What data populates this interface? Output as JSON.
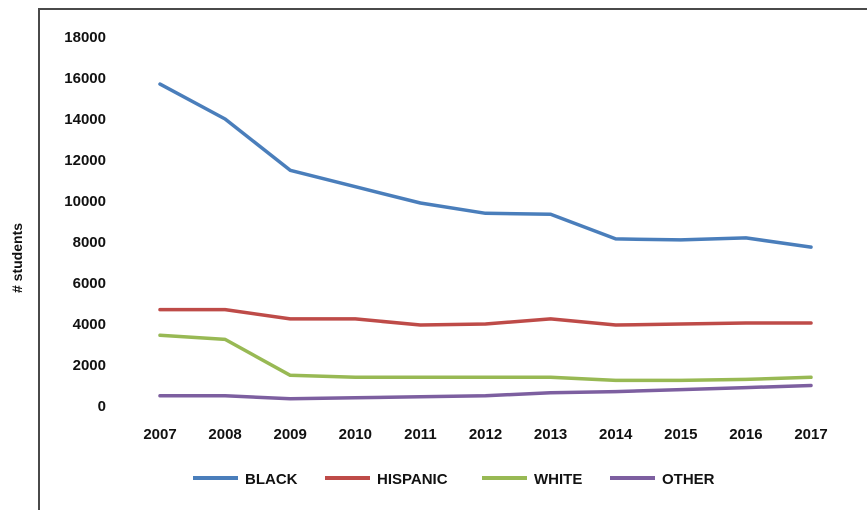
{
  "chart_data": {
    "type": "line",
    "ylabel": "# students",
    "ylim": [
      0,
      18000
    ],
    "yticks": [
      0,
      2000,
      4000,
      6000,
      8000,
      10000,
      12000,
      14000,
      16000,
      18000
    ],
    "categories": [
      "2007",
      "2008",
      "2009",
      "2010",
      "2011",
      "2012",
      "2013",
      "2014",
      "2015",
      "2016",
      "2017"
    ],
    "grid": false,
    "legend_position": "bottom",
    "series": [
      {
        "name": "BLACK",
        "color": "#4a7ebb",
        "values": [
          15700,
          14000,
          11500,
          10700,
          9900,
          9400,
          9350,
          8150,
          8100,
          8200,
          7750
        ]
      },
      {
        "name": "HISPANIC",
        "color": "#be4b48",
        "values": [
          4700,
          4700,
          4250,
          4250,
          3950,
          4000,
          4250,
          3950,
          4000,
          4050,
          4050
        ]
      },
      {
        "name": "WHITE",
        "color": "#98b954",
        "values": [
          3450,
          3250,
          1500,
          1400,
          1400,
          1400,
          1400,
          1250,
          1250,
          1300,
          1400
        ]
      },
      {
        "name": "OTHER",
        "color": "#7d5fa0",
        "values": [
          500,
          500,
          350,
          400,
          450,
          500,
          650,
          700,
          800,
          900,
          1000
        ]
      }
    ]
  }
}
